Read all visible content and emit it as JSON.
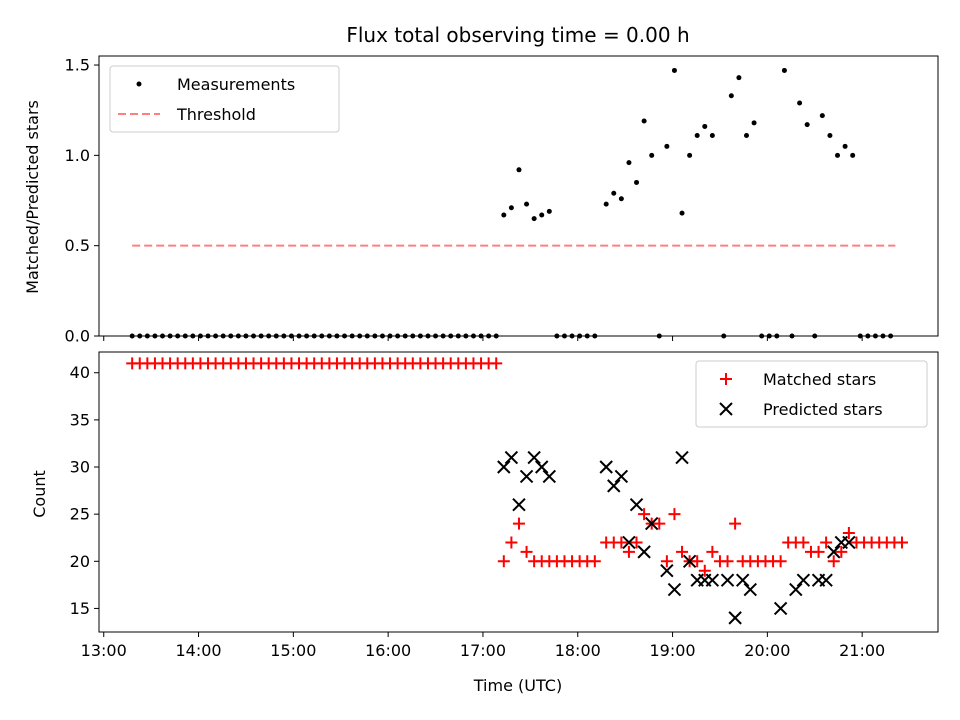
{
  "chart_data": [
    {
      "type": "scatter",
      "title": "Flux total observing time = 0.00 h",
      "xlabel": "",
      "ylabel": "Matched/Predicted stars",
      "xlim_hours": [
        12.95,
        21.8
      ],
      "ylim": [
        0,
        1.55
      ],
      "yticks": [
        0.0,
        0.5,
        1.0,
        1.5
      ],
      "ytick_labels": [
        "0.0",
        "0.5",
        "1.0",
        "1.5"
      ],
      "legend_position": "top-left",
      "legend": [
        "Measurements",
        "Threshold"
      ],
      "threshold": {
        "name": "Threshold",
        "y": 0.5,
        "x_start": 13.3,
        "x_end": 21.35,
        "color": "#ff7f7f"
      },
      "series": [
        {
          "name": "Measurements",
          "color": "#000000",
          "points": [
            [
              13.3,
              0
            ],
            [
              13.38,
              0
            ],
            [
              13.46,
              0
            ],
            [
              13.54,
              0
            ],
            [
              13.62,
              0
            ],
            [
              13.7,
              0
            ],
            [
              13.78,
              0
            ],
            [
              13.86,
              0
            ],
            [
              13.94,
              0
            ],
            [
              14.02,
              0
            ],
            [
              14.1,
              0
            ],
            [
              14.18,
              0
            ],
            [
              14.26,
              0
            ],
            [
              14.34,
              0
            ],
            [
              14.42,
              0
            ],
            [
              14.5,
              0
            ],
            [
              14.58,
              0
            ],
            [
              14.66,
              0
            ],
            [
              14.74,
              0
            ],
            [
              14.82,
              0
            ],
            [
              14.9,
              0
            ],
            [
              14.98,
              0
            ],
            [
              15.06,
              0
            ],
            [
              15.14,
              0
            ],
            [
              15.22,
              0
            ],
            [
              15.3,
              0
            ],
            [
              15.38,
              0
            ],
            [
              15.46,
              0
            ],
            [
              15.54,
              0
            ],
            [
              15.62,
              0
            ],
            [
              15.7,
              0
            ],
            [
              15.78,
              0
            ],
            [
              15.86,
              0
            ],
            [
              15.94,
              0
            ],
            [
              16.02,
              0
            ],
            [
              16.1,
              0
            ],
            [
              16.18,
              0
            ],
            [
              16.26,
              0
            ],
            [
              16.34,
              0
            ],
            [
              16.42,
              0
            ],
            [
              16.5,
              0
            ],
            [
              16.58,
              0
            ],
            [
              16.66,
              0
            ],
            [
              16.74,
              0
            ],
            [
              16.82,
              0
            ],
            [
              16.9,
              0
            ],
            [
              16.98,
              0
            ],
            [
              17.06,
              0
            ],
            [
              17.14,
              0
            ],
            [
              17.22,
              0.67
            ],
            [
              17.3,
              0.71
            ],
            [
              17.38,
              0.92
            ],
            [
              17.46,
              0.73
            ],
            [
              17.54,
              0.65
            ],
            [
              17.62,
              0.67
            ],
            [
              17.7,
              0.69
            ],
            [
              17.78,
              0
            ],
            [
              17.86,
              0
            ],
            [
              17.94,
              0
            ],
            [
              18.02,
              0
            ],
            [
              18.1,
              0
            ],
            [
              18.18,
              0
            ],
            [
              18.3,
              0.73
            ],
            [
              18.38,
              0.79
            ],
            [
              18.46,
              0.76
            ],
            [
              18.54,
              0.96
            ],
            [
              18.62,
              0.85
            ],
            [
              18.7,
              1.19
            ],
            [
              18.78,
              1.0
            ],
            [
              18.86,
              0
            ],
            [
              18.94,
              1.05
            ],
            [
              19.02,
              1.47
            ],
            [
              19.1,
              0.68
            ],
            [
              19.18,
              1.0
            ],
            [
              19.26,
              1.11
            ],
            [
              19.34,
              1.16
            ],
            [
              19.42,
              1.11
            ],
            [
              19.54,
              0
            ],
            [
              19.62,
              1.33
            ],
            [
              19.7,
              1.43
            ],
            [
              19.78,
              1.11
            ],
            [
              19.86,
              1.18
            ],
            [
              19.94,
              0
            ],
            [
              20.02,
              0
            ],
            [
              20.1,
              0
            ],
            [
              20.18,
              1.47
            ],
            [
              20.26,
              0
            ],
            [
              20.34,
              1.29
            ],
            [
              20.42,
              1.17
            ],
            [
              20.5,
              0
            ],
            [
              20.58,
              1.22
            ],
            [
              20.66,
              1.11
            ],
            [
              20.74,
              1.0
            ],
            [
              20.82,
              1.05
            ],
            [
              20.9,
              1.0
            ],
            [
              20.98,
              0
            ],
            [
              21.06,
              0
            ],
            [
              21.14,
              0
            ],
            [
              21.22,
              0
            ],
            [
              21.3,
              0
            ]
          ]
        }
      ]
    },
    {
      "type": "scatter",
      "title": "",
      "xlabel": "Time (UTC)",
      "ylabel": "Count",
      "xlim_hours": [
        12.95,
        21.8
      ],
      "ylim": [
        12.5,
        42.2
      ],
      "yticks": [
        15,
        20,
        25,
        30,
        35,
        40
      ],
      "ytick_labels": [
        "15",
        "20",
        "25",
        "30",
        "35",
        "40"
      ],
      "xticks_hours": [
        13,
        14,
        15,
        16,
        17,
        18,
        19,
        20,
        21
      ],
      "xtick_labels": [
        "13:00",
        "14:00",
        "15:00",
        "16:00",
        "17:00",
        "18:00",
        "19:00",
        "20:00",
        "21:00"
      ],
      "legend_position": "top-right",
      "legend": [
        "Matched stars",
        "Predicted stars"
      ],
      "series": [
        {
          "name": "Matched stars",
          "marker": "plus",
          "color": "#ff0000",
          "points": [
            [
              13.3,
              41
            ],
            [
              13.38,
              41
            ],
            [
              13.46,
              41
            ],
            [
              13.54,
              41
            ],
            [
              13.62,
              41
            ],
            [
              13.7,
              41
            ],
            [
              13.78,
              41
            ],
            [
              13.86,
              41
            ],
            [
              13.94,
              41
            ],
            [
              14.02,
              41
            ],
            [
              14.1,
              41
            ],
            [
              14.18,
              41
            ],
            [
              14.26,
              41
            ],
            [
              14.34,
              41
            ],
            [
              14.42,
              41
            ],
            [
              14.5,
              41
            ],
            [
              14.58,
              41
            ],
            [
              14.66,
              41
            ],
            [
              14.74,
              41
            ],
            [
              14.82,
              41
            ],
            [
              14.9,
              41
            ],
            [
              14.98,
              41
            ],
            [
              15.06,
              41
            ],
            [
              15.14,
              41
            ],
            [
              15.22,
              41
            ],
            [
              15.3,
              41
            ],
            [
              15.38,
              41
            ],
            [
              15.46,
              41
            ],
            [
              15.54,
              41
            ],
            [
              15.62,
              41
            ],
            [
              15.7,
              41
            ],
            [
              15.78,
              41
            ],
            [
              15.86,
              41
            ],
            [
              15.94,
              41
            ],
            [
              16.02,
              41
            ],
            [
              16.1,
              41
            ],
            [
              16.18,
              41
            ],
            [
              16.26,
              41
            ],
            [
              16.34,
              41
            ],
            [
              16.42,
              41
            ],
            [
              16.5,
              41
            ],
            [
              16.58,
              41
            ],
            [
              16.66,
              41
            ],
            [
              16.74,
              41
            ],
            [
              16.82,
              41
            ],
            [
              16.9,
              41
            ],
            [
              16.98,
              41
            ],
            [
              17.06,
              41
            ],
            [
              17.14,
              41
            ],
            [
              17.22,
              20
            ],
            [
              17.3,
              22
            ],
            [
              17.38,
              24
            ],
            [
              17.46,
              21
            ],
            [
              17.54,
              20
            ],
            [
              17.62,
              20
            ],
            [
              17.7,
              20
            ],
            [
              17.78,
              20
            ],
            [
              17.86,
              20
            ],
            [
              17.94,
              20
            ],
            [
              18.02,
              20
            ],
            [
              18.1,
              20
            ],
            [
              18.18,
              20
            ],
            [
              18.3,
              22
            ],
            [
              18.38,
              22
            ],
            [
              18.46,
              22
            ],
            [
              18.54,
              21
            ],
            [
              18.62,
              22
            ],
            [
              18.7,
              25
            ],
            [
              18.78,
              24
            ],
            [
              18.86,
              24
            ],
            [
              18.94,
              20
            ],
            [
              19.02,
              25
            ],
            [
              19.1,
              21
            ],
            [
              19.18,
              20
            ],
            [
              19.26,
              20
            ],
            [
              19.34,
              19
            ],
            [
              19.42,
              21
            ],
            [
              19.5,
              20
            ],
            [
              19.58,
              20
            ],
            [
              19.66,
              24
            ],
            [
              19.74,
              20
            ],
            [
              19.82,
              20
            ],
            [
              19.9,
              20
            ],
            [
              19.98,
              20
            ],
            [
              20.06,
              20
            ],
            [
              20.14,
              20
            ],
            [
              20.22,
              22
            ],
            [
              20.3,
              22
            ],
            [
              20.38,
              22
            ],
            [
              20.46,
              21
            ],
            [
              20.54,
              21
            ],
            [
              20.62,
              22
            ],
            [
              20.7,
              20
            ],
            [
              20.78,
              21
            ],
            [
              20.86,
              23
            ],
            [
              20.94,
              22
            ],
            [
              21.02,
              22
            ],
            [
              21.1,
              22
            ],
            [
              21.18,
              22
            ],
            [
              21.26,
              22
            ],
            [
              21.34,
              22
            ],
            [
              21.42,
              22
            ]
          ]
        },
        {
          "name": "Predicted stars",
          "marker": "x",
          "color": "#000000",
          "points": [
            [
              17.22,
              30
            ],
            [
              17.3,
              31
            ],
            [
              17.38,
              26
            ],
            [
              17.46,
              29
            ],
            [
              17.54,
              31
            ],
            [
              17.62,
              30
            ],
            [
              17.7,
              29
            ],
            [
              18.3,
              30
            ],
            [
              18.38,
              28
            ],
            [
              18.46,
              29
            ],
            [
              18.54,
              22
            ],
            [
              18.62,
              26
            ],
            [
              18.7,
              21
            ],
            [
              18.78,
              24
            ],
            [
              18.94,
              19
            ],
            [
              19.02,
              17
            ],
            [
              19.1,
              31
            ],
            [
              19.18,
              20
            ],
            [
              19.26,
              18
            ],
            [
              19.34,
              18
            ],
            [
              19.42,
              18
            ],
            [
              19.58,
              18
            ],
            [
              19.66,
              14
            ],
            [
              19.74,
              18
            ],
            [
              19.82,
              17
            ],
            [
              20.14,
              15
            ],
            [
              20.3,
              17
            ],
            [
              20.38,
              18
            ],
            [
              20.54,
              18
            ],
            [
              20.62,
              18
            ],
            [
              20.7,
              21
            ],
            [
              20.78,
              22
            ],
            [
              20.86,
              22
            ]
          ]
        }
      ]
    }
  ]
}
